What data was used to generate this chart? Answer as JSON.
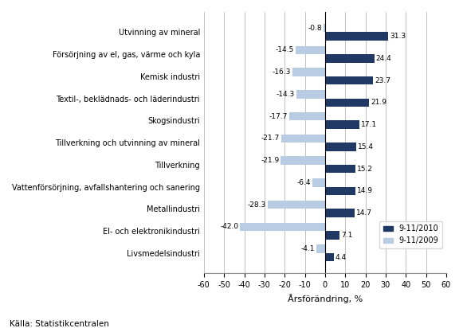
{
  "categories": [
    "Utvinning av mineral",
    "Försörjning av el, gas, värme och kyla",
    "Kemisk industri",
    "Textil-, beklädnads- och läderindustri",
    "Skogsindustri",
    "Tillverkning och utvinning av mineral",
    "Tillverkning",
    "Vattenförsörjning, avfallshantering och sanering",
    "Metallindustri",
    "El- och elektronikindustri",
    "Livsmedelsindustri"
  ],
  "values_2010": [
    31.3,
    24.4,
    23.7,
    21.9,
    17.1,
    15.4,
    15.2,
    14.9,
    14.7,
    7.1,
    4.4
  ],
  "values_2009": [
    -0.8,
    -14.5,
    -16.3,
    -14.3,
    -17.7,
    -21.7,
    -21.9,
    -6.4,
    -28.3,
    -42.0,
    -4.1
  ],
  "color_2010": "#1F3864",
  "color_2009": "#B8CCE4",
  "xlabel": "Årsförändring, %",
  "legend_2010": "9-11/2010",
  "legend_2009": "9-11/2009",
  "xlim": [
    -60,
    60
  ],
  "xticks": [
    -60,
    -50,
    -40,
    -30,
    -20,
    -10,
    0,
    10,
    20,
    30,
    40,
    50,
    60
  ],
  "source": "Källa: Statistikcentralen",
  "bg_color": "#FFFFFF",
  "plot_bg_color": "#FFFFFF"
}
